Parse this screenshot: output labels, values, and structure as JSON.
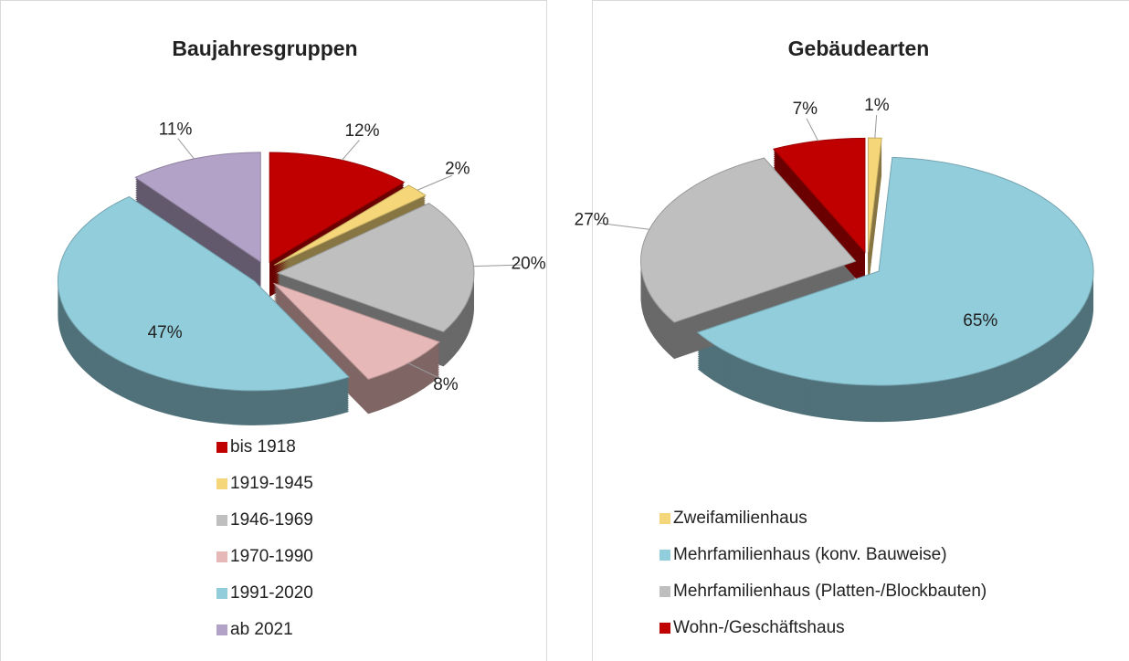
{
  "chart_data": [
    {
      "type": "pie",
      "title": "Baujahresgruppen",
      "categories": [
        "bis 1918",
        "1919-1945",
        "1946-1969",
        "1970-1990",
        "1991-2020",
        "ab 2021"
      ],
      "values": [
        12,
        2,
        20,
        8,
        47,
        11
      ],
      "value_labels": [
        "12%",
        "2%",
        "20%",
        "8%",
        "47%",
        "11%"
      ],
      "colors": [
        "#c00000",
        "#f5d77a",
        "#bfbfbf",
        "#e6b9b8",
        "#92cddc",
        "#b3a2c7"
      ]
    },
    {
      "type": "pie",
      "title": "Gebäudearten",
      "categories": [
        "Zweifamilienhaus",
        "Mehrfamilienhaus (konv. Bauweise)",
        "Mehrfamilienhaus (Platten-/Blockbauten)",
        "Wohn-/Geschäftshaus"
      ],
      "values": [
        1,
        65,
        27,
        7
      ],
      "value_labels": [
        "1%",
        "65%",
        "27%",
        "7%"
      ],
      "colors": [
        "#f5d77a",
        "#92cddc",
        "#bfbfbf",
        "#c00000"
      ]
    }
  ]
}
